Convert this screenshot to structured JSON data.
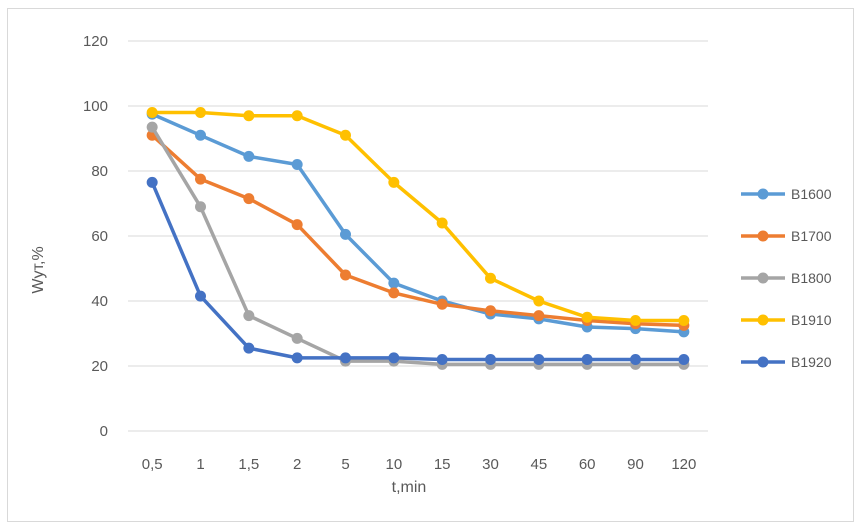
{
  "chart_data": {
    "type": "line",
    "title": "",
    "xlabel": "t,min",
    "ylabel": "Wут,%",
    "ylim": [
      0,
      120
    ],
    "yticks": [
      0,
      20,
      40,
      60,
      80,
      100,
      120
    ],
    "grid": true,
    "legend_position": "right",
    "categories": [
      "0,5",
      "1",
      "1,5",
      "2",
      "5",
      "10",
      "15",
      "30",
      "45",
      "60",
      "90",
      "120"
    ],
    "series": [
      {
        "name": "B1600",
        "color": "#5B9BD5",
        "values": [
          97.5,
          91,
          84.5,
          82,
          60.5,
          45.5,
          40,
          36,
          34.5,
          32,
          31.5,
          30.5
        ]
      },
      {
        "name": "B1700",
        "color": "#ED7D31",
        "values": [
          91,
          77.5,
          71.5,
          63.5,
          48,
          42.5,
          39,
          37,
          35.5,
          34,
          33,
          32.5
        ]
      },
      {
        "name": "B1800",
        "color": "#A5A5A5",
        "values": [
          93.5,
          69,
          35.5,
          28.5,
          21.5,
          21.5,
          20.5,
          20.5,
          20.5,
          20.5,
          20.5,
          20.5
        ]
      },
      {
        "name": "B1910",
        "color": "#FFC000",
        "values": [
          98,
          98,
          97,
          97,
          91,
          76.5,
          64,
          47,
          40,
          35,
          34,
          34
        ]
      },
      {
        "name": "B1920",
        "color": "#4472C4",
        "values": [
          76.5,
          41.5,
          25.5,
          22.5,
          22.5,
          22.5,
          22,
          22,
          22,
          22,
          22,
          22
        ]
      }
    ]
  }
}
